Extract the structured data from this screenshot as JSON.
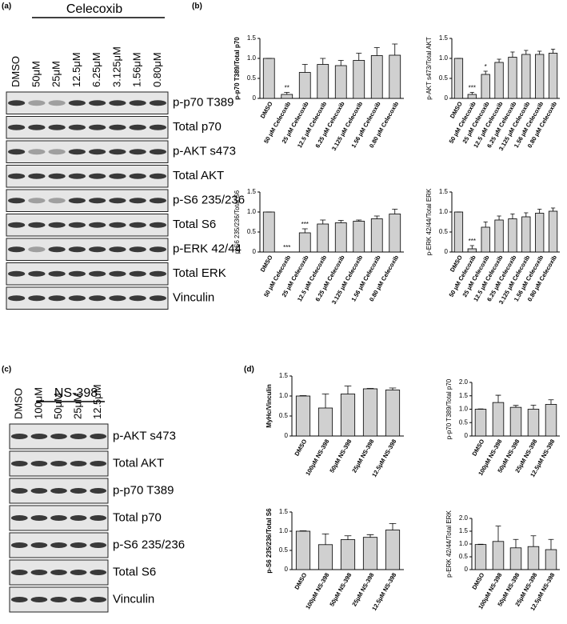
{
  "panels": {
    "a": "(a)",
    "b": "(b)",
    "c": "(c)",
    "d": "(d)"
  },
  "blot_a": {
    "treatment": "Celecoxib",
    "lanes": [
      "DMSO",
      "50μM",
      "25μM",
      "12.5μM",
      "6.25μM",
      "3.125μM",
      "1.56μM",
      "0.80μM"
    ],
    "rows": [
      "p-p70 T389",
      "Total p70",
      "p-AKT s473",
      "Total AKT",
      "p-S6 235/236",
      "Total S6",
      "p-ERK 42/44",
      "Total ERK",
      "Vinculin"
    ]
  },
  "blot_c": {
    "treatment": "NS-398",
    "lanes": [
      "DMSO",
      "100μM",
      "50μM",
      "25μM",
      "12.5μM"
    ],
    "rows": [
      "p-AKT s473",
      "Total AKT",
      "p-p70 T389",
      "Total p70",
      "p-S6 235/236",
      "Total S6",
      "Vinculin"
    ]
  },
  "chart_data": [
    {
      "type": "bar",
      "ylabel": "p-p70 T389/Total p70",
      "categories": [
        "DMSO",
        "50 μM Celecoxib",
        "25 μM Celecoxib",
        "12.5 μM Celecoxib",
        "6.25 μM Celecoxib",
        "3.125 μM Celecoxib",
        "1.56 μM Celecoxib",
        "0.80 μM Celecoxib"
      ],
      "values": [
        1.0,
        0.1,
        0.65,
        0.85,
        0.82,
        0.95,
        1.07,
        1.08
      ],
      "errors": [
        0,
        0.05,
        0.2,
        0.15,
        0.13,
        0.18,
        0.2,
        0.28
      ],
      "significance": [
        null,
        "**",
        null,
        null,
        null,
        null,
        null,
        null
      ],
      "ylim": [
        0,
        1.5
      ],
      "yticks": [
        0,
        0.5,
        {
          "value": 1,
          "label": "1.0"
        },
        1.5
      ],
      "color": "#d0d0d0"
    },
    {
      "type": "bar",
      "ylabel": "p-AKT s473/Total AKT",
      "categories": [
        "DMSO",
        "50 μM Celecoxib",
        "25 μM Celecoxib",
        "12.5 μM Celecoxib",
        "6.25 μM Celecoxib",
        "3.125 μM Celecoxib",
        "1.56 μM Celecoxib",
        "0.80 μM Celecoxib"
      ],
      "values": [
        1.0,
        0.1,
        0.6,
        0.9,
        1.03,
        1.1,
        1.1,
        1.13
      ],
      "errors": [
        0,
        0.05,
        0.08,
        0.08,
        0.13,
        0.1,
        0.08,
        0.1
      ],
      "significance": [
        null,
        "***",
        "*",
        null,
        null,
        null,
        null,
        null
      ],
      "ylim": [
        0,
        1.5
      ],
      "yticks": [
        0,
        0.5,
        {
          "value": 1,
          "label": "1.0"
        },
        1.5
      ],
      "color": "#d0d0d0"
    },
    {
      "type": "bar",
      "ylabel": "p-S6 235/236/Total S6",
      "categories": [
        "DMSO",
        "50 μM Celecoxib",
        "25 μM Celecoxib",
        "12.5 μM Celecoxib",
        "6.25 μM Celecoxib",
        "3.125 μM Celecoxib",
        "1.56 μM Celecoxib",
        "0.80 μM Celecoxib"
      ],
      "values": [
        1.0,
        0.0,
        0.48,
        0.7,
        0.73,
        0.77,
        0.83,
        0.95
      ],
      "errors": [
        0,
        0,
        0.1,
        0.1,
        0.06,
        0.03,
        0.07,
        0.12
      ],
      "significance": [
        null,
        "***",
        "***",
        null,
        null,
        null,
        null,
        null
      ],
      "ylim": [
        0,
        1.5
      ],
      "yticks": [
        0,
        0.5,
        {
          "value": 1,
          "label": "1.0"
        },
        1.5
      ],
      "color": "#d0d0d0"
    },
    {
      "type": "bar",
      "ylabel": "p-ERK 42/44/Total ERK",
      "categories": [
        "DMSO",
        "50 μM Celecoxib",
        "25 μM Celecoxib",
        "12.5 μM Celecoxib",
        "6.25 μM Celecoxib",
        "3.125 μM Celecoxib",
        "1.56 μM Celecoxib",
        "0.80 μM Celecoxib"
      ],
      "values": [
        1.0,
        0.08,
        0.62,
        0.8,
        0.83,
        0.88,
        0.97,
        1.02
      ],
      "errors": [
        0,
        0.08,
        0.13,
        0.1,
        0.12,
        0.1,
        0.1,
        0.08
      ],
      "significance": [
        null,
        "***",
        null,
        null,
        null,
        null,
        null,
        null
      ],
      "ylim": [
        0,
        1.5
      ],
      "yticks": [
        0,
        0.5,
        {
          "value": 1,
          "label": "1.0"
        },
        1.5
      ],
      "color": "#d0d0d0"
    },
    {
      "type": "bar",
      "ylabel": "MyHc/Vinculin",
      "categories": [
        "DMSO",
        "100μM NS-398",
        "50μM NS-398",
        "25μM NS-398",
        "12.5μM NS-398"
      ],
      "values": [
        1.0,
        0.7,
        1.05,
        1.18,
        1.15
      ],
      "errors": [
        0.01,
        0.35,
        0.2,
        0.01,
        0.05
      ],
      "ylim": [
        0,
        1.5
      ],
      "yticks": [
        0,
        0.5,
        {
          "value": 1,
          "label": "1.0"
        },
        1.5
      ],
      "color": "#d0d0d0"
    },
    {
      "type": "bar",
      "ylabel": "p-p70 T389/Total p70",
      "categories": [
        "DMSO",
        "100μM NS-398",
        "50μM NS-398",
        "25μM NS-398",
        "12.5μM NS-398"
      ],
      "values": [
        1.0,
        1.25,
        1.07,
        1.0,
        1.18
      ],
      "errors": [
        0.01,
        0.27,
        0.07,
        0.15,
        0.17
      ],
      "ylim": [
        0,
        2
      ],
      "yticks": [
        0,
        0.5,
        {
          "value": 1,
          "label": "1.0"
        },
        1.5,
        {
          "value": 2,
          "label": "2.0"
        }
      ],
      "color": "#d0d0d0"
    },
    {
      "type": "bar",
      "ylabel": "p-S6 235/236/Total S6",
      "categories": [
        "DMSO",
        "100μM NS-398",
        "50μM NS-398",
        "25μM NS-398",
        "12.5μM NS-398"
      ],
      "values": [
        1.0,
        0.65,
        0.78,
        0.84,
        1.03
      ],
      "errors": [
        0.01,
        0.28,
        0.1,
        0.07,
        0.17
      ],
      "ylim": [
        0,
        1.5
      ],
      "yticks": [
        0,
        0.5,
        {
          "value": 1,
          "label": "1.0"
        },
        1.5
      ],
      "color": "#d0d0d0"
    },
    {
      "type": "bar",
      "ylabel": "p-ERK 42/44/Total ERK",
      "categories": [
        "DMSO",
        "100μM NS-398",
        "50μM NS-398",
        "25μM NS-398",
        "12.5μM NS-398"
      ],
      "values": [
        0.98,
        1.1,
        0.85,
        0.9,
        0.78
      ],
      "errors": [
        0.01,
        0.6,
        0.33,
        0.42,
        0.4
      ],
      "ylim": [
        0,
        2
      ],
      "yticks": [
        0,
        0.5,
        {
          "value": 1,
          "label": "1.0"
        },
        1.5,
        {
          "value": 2,
          "label": "2.0"
        }
      ],
      "color": "#d0d0d0"
    }
  ]
}
